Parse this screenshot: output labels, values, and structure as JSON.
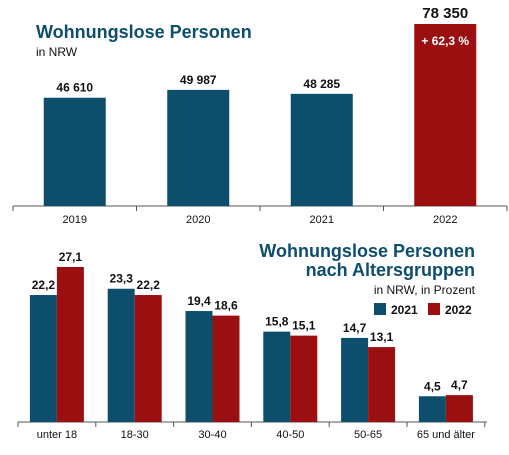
{
  "colors": {
    "teal": "#0d4e6d",
    "red": "#9b0f10",
    "text": "#111111",
    "axis": "#555555"
  },
  "chart_data": [
    {
      "type": "bar",
      "title": "Wohnungslose Personen",
      "subtitle": "in NRW",
      "categories": [
        "2019",
        "2020",
        "2021",
        "2022"
      ],
      "values": [
        46610,
        49987,
        48285,
        78350
      ],
      "value_labels": [
        "46 610",
        "49 987",
        "48 285",
        "78 350"
      ],
      "colors": [
        "teal",
        "teal",
        "teal",
        "red"
      ],
      "annotation": "+ 62,3 %",
      "ylim": [
        0,
        78350
      ]
    },
    {
      "type": "bar",
      "title_line1": "Wohnungslose Personen",
      "title_line2": "nach Altersgruppen",
      "subtitle": "in NRW, in Prozent",
      "categories": [
        "unter 18",
        "18-30",
        "30-40",
        "40-50",
        "50-65",
        "65 und älter"
      ],
      "series": [
        {
          "name": "2021",
          "color": "teal",
          "values": [
            22.2,
            23.3,
            19.4,
            15.8,
            14.7,
            4.5
          ],
          "labels": [
            "22,2",
            "23,3",
            "19,4",
            "15,8",
            "14,7",
            "4,5"
          ]
        },
        {
          "name": "2022",
          "color": "red",
          "values": [
            27.1,
            22.2,
            18.6,
            15.1,
            13.1,
            4.7
          ],
          "labels": [
            "27,1",
            "22,2",
            "18,6",
            "15,1",
            "13,1",
            "4,7"
          ]
        }
      ],
      "ylim": [
        0,
        27.1
      ],
      "legend_position": "top-right"
    }
  ]
}
